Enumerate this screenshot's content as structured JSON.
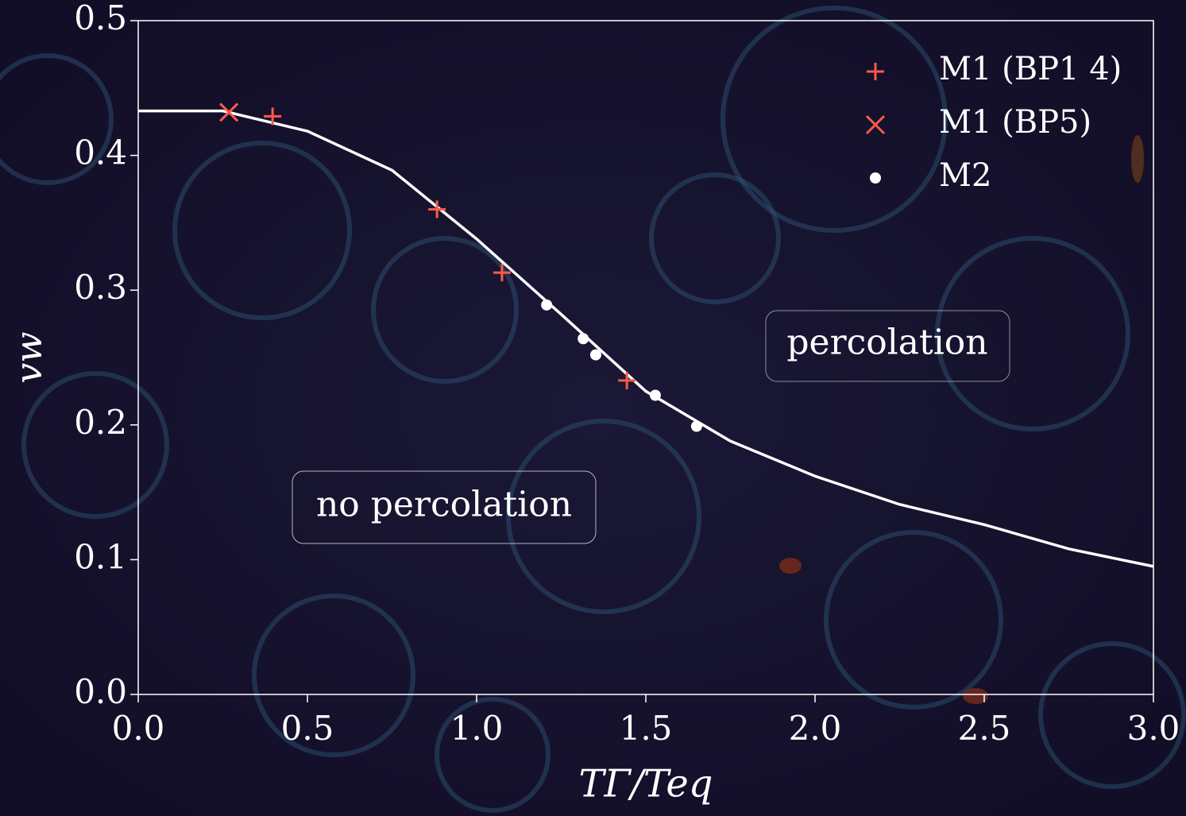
{
  "chart_data": {
    "type": "scatter",
    "xlabel": "TΓ/Teq",
    "ylabel": "vw",
    "xlim": [
      0,
      3
    ],
    "ylim": [
      0,
      0.5
    ],
    "xticks": [
      {
        "value": 0,
        "label": "0.0"
      },
      0.5,
      {
        "value": 1,
        "label": "1.0"
      },
      1.5,
      {
        "value": 2,
        "label": "2.0"
      },
      2.5,
      {
        "value": 3,
        "label": "3.0"
      }
    ],
    "yticks": [
      {
        "value": 0,
        "label": "0.0"
      },
      0.1,
      0.2,
      0.3,
      0.4,
      0.5
    ],
    "legend": "upper right",
    "series": [
      {
        "type": "line",
        "color": "#ffffff",
        "x": [
          0,
          0.25,
          0.5,
          0.75,
          1.0,
          1.25,
          1.5,
          1.75,
          2.0,
          2.25,
          2.5,
          2.75,
          3.0
        ],
        "values": [
          0.433,
          0.433,
          0.418,
          0.389,
          0.338,
          0.282,
          0.225,
          0.188,
          0.162,
          0.141,
          0.126,
          0.108,
          0.095
        ]
      },
      {
        "name": "M1 (BP1 4)",
        "marker": "plus",
        "color": "#ff5a4a",
        "x": [
          0.397,
          0.883,
          1.075,
          1.444
        ],
        "values": [
          0.429,
          0.36,
          0.313,
          0.233
        ]
      },
      {
        "name": "M1 (BP5)",
        "marker": "cross",
        "color": "#ff5a4a",
        "x": [
          0.268
        ],
        "values": [
          0.432
        ]
      },
      {
        "name": "M2",
        "marker": "dot",
        "color": "#ffffff",
        "x": [
          1.207,
          1.315,
          1.352,
          1.528,
          1.65
        ],
        "values": [
          0.289,
          0.264,
          0.252,
          0.222,
          0.199
        ]
      }
    ],
    "annotations": [
      "no percolation",
      "percolation"
    ]
  }
}
